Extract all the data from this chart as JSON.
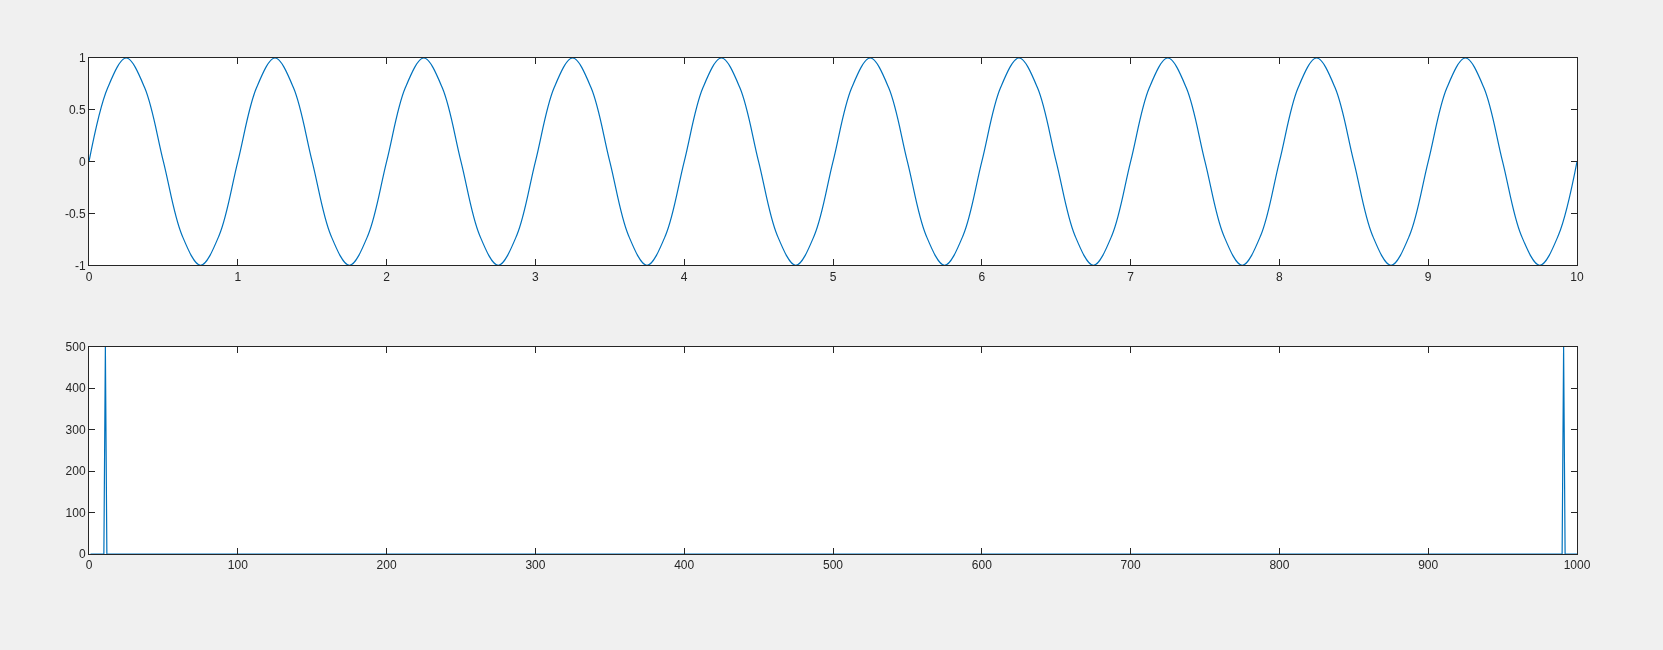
{
  "chart_data": [
    {
      "type": "line",
      "xlim": [
        0,
        10
      ],
      "ylim": [
        -1,
        1
      ],
      "xticks": [
        0,
        1,
        2,
        3,
        4,
        5,
        6,
        7,
        8,
        9,
        10
      ],
      "yticks": [
        -1,
        -0.5,
        0,
        0.5,
        1
      ],
      "x": [
        0,
        0.125,
        0.25,
        0.375,
        0.5,
        0.625,
        0.75,
        0.875,
        1,
        1.125,
        1.25,
        1.375,
        1.5,
        1.625,
        1.75,
        1.875,
        2,
        2.125,
        2.25,
        2.375,
        2.5,
        2.625,
        2.75,
        2.875,
        3,
        3.125,
        3.25,
        3.375,
        3.5,
        3.625,
        3.75,
        3.875,
        4,
        4.125,
        4.25,
        4.375,
        4.5,
        4.625,
        4.75,
        4.875,
        5,
        5.125,
        5.25,
        5.375,
        5.5,
        5.625,
        5.75,
        5.875,
        6,
        6.125,
        6.25,
        6.375,
        6.5,
        6.625,
        6.75,
        6.875,
        7,
        7.125,
        7.25,
        7.375,
        7.5,
        7.625,
        7.75,
        7.875,
        8,
        8.125,
        8.25,
        8.375,
        8.5,
        8.625,
        8.75,
        8.875,
        9,
        9.125,
        9.25,
        9.375,
        9.5,
        9.625,
        9.75,
        9.875,
        10
      ],
      "series": [
        {
          "color": "#0072bd",
          "values": [
            0,
            0.71,
            1,
            0.71,
            0,
            -0.71,
            -1,
            -0.71,
            0,
            0.71,
            1,
            0.71,
            0,
            -0.71,
            -1,
            -0.71,
            0,
            0.71,
            1,
            0.71,
            0,
            -0.71,
            -1,
            -0.71,
            0,
            0.71,
            1,
            0.71,
            0,
            -0.71,
            -1,
            -0.71,
            0,
            0.71,
            1,
            0.71,
            0,
            -0.71,
            -1,
            -0.71,
            0,
            0.71,
            1,
            0.71,
            0,
            -0.71,
            -1,
            -0.71,
            0,
            0.71,
            1,
            0.71,
            0,
            -0.71,
            -1,
            -0.71,
            0,
            0.71,
            1,
            0.71,
            0,
            -0.71,
            -1,
            -0.71,
            0,
            0.71,
            1,
            0.71,
            0,
            -0.71,
            -1,
            -0.71,
            0,
            0.71,
            1,
            0.71,
            0,
            -0.71,
            -1,
            -0.71,
            0
          ]
        }
      ]
    },
    {
      "type": "line",
      "xlim": [
        0,
        1000
      ],
      "ylim": [
        0,
        500
      ],
      "xticks": [
        0,
        100,
        200,
        300,
        400,
        500,
        600,
        700,
        800,
        900,
        1000
      ],
      "yticks": [
        0,
        100,
        200,
        300,
        400,
        500
      ],
      "x": [
        1,
        10,
        11,
        12,
        990,
        991,
        992,
        1000
      ],
      "series": [
        {
          "color": "#0072bd",
          "values": [
            0,
            0,
            500,
            0,
            0,
            500,
            0,
            0
          ]
        }
      ]
    }
  ]
}
